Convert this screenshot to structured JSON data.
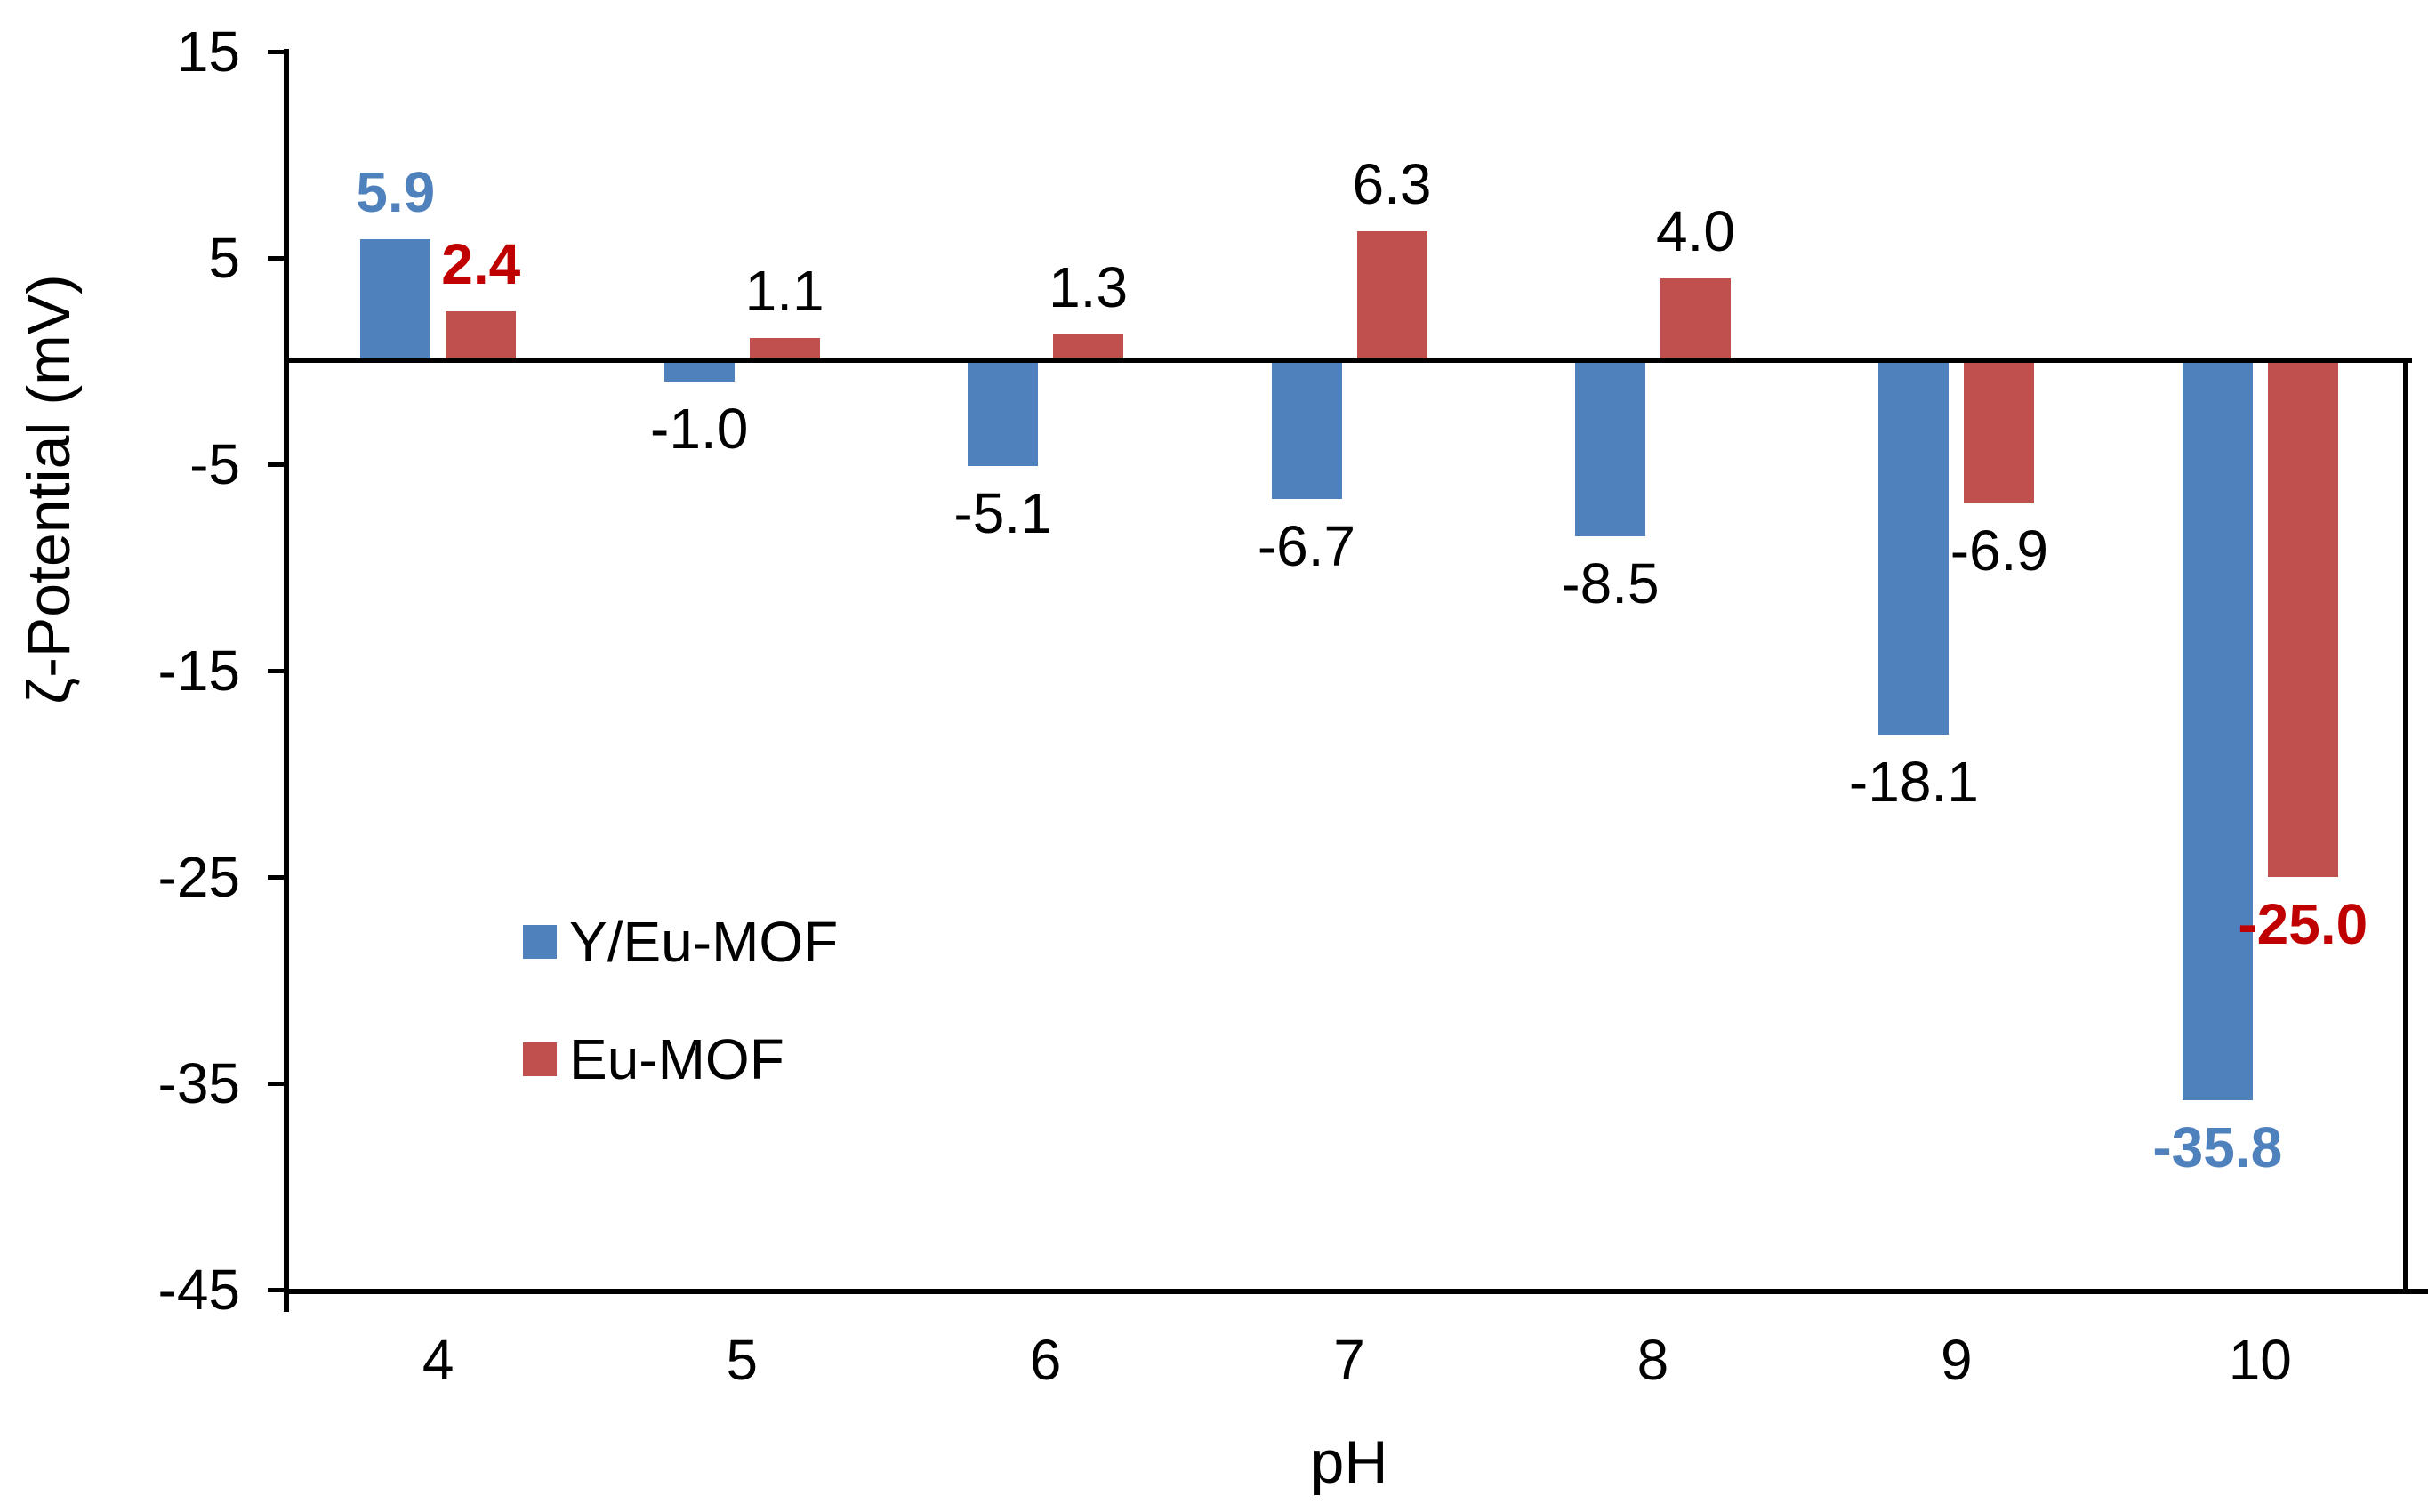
{
  "chart_data": {
    "type": "bar",
    "title": "",
    "xlabel": "pH",
    "ylabel": "ζ-Potential (mV)",
    "categories": [
      "4",
      "5",
      "6",
      "7",
      "8",
      "9",
      "10"
    ],
    "series": [
      {
        "name": "Y/Eu-MOF",
        "color": "#4F81BD",
        "values": [
          5.9,
          -1.0,
          -5.1,
          -6.7,
          -8.5,
          -18.1,
          -35.8
        ],
        "labels": [
          "5.9",
          "-1.0",
          "-5.1",
          "-6.7",
          "-8.5",
          "-18.1",
          "-35.8"
        ],
        "label_styles": [
          "bold-blue",
          "black",
          "black",
          "black",
          "black",
          "black",
          "bold-blue"
        ]
      },
      {
        "name": "Eu-MOF",
        "color": "#C0504D",
        "values": [
          2.4,
          1.1,
          1.3,
          6.3,
          4.0,
          -6.9,
          -25.0
        ],
        "labels": [
          "2.4",
          "1.1",
          "1.3",
          "6.3",
          "4.0",
          "-6.9",
          "-25.0"
        ],
        "label_styles": [
          "bold-red",
          "black",
          "black",
          "black",
          "black",
          "black",
          "bold-red"
        ]
      }
    ],
    "ylim": [
      -45,
      15
    ],
    "yticks": [
      "15",
      "5",
      "-5",
      "-15",
      "-25",
      "-35",
      "-45"
    ],
    "grid": false,
    "legend_position": "inside-left-middle",
    "colors": {
      "blue_bar": "#4F81BD",
      "red_bar": "#C0504D",
      "bold_blue_label": "#4F81BD",
      "bold_red_label": "#C00000",
      "axis": "#000000",
      "background": "#FFFFFF"
    }
  },
  "axes": {
    "x_title": "pH",
    "y_title": "ζ-Potential (mV)",
    "x_ticks": [
      "4",
      "5",
      "6",
      "7",
      "8",
      "9",
      "10"
    ],
    "y_ticks": [
      "15",
      "5",
      "-5",
      "-15",
      "-25",
      "-35",
      "-45"
    ]
  },
  "legend": {
    "items": [
      {
        "label": "Y/Eu-MOF",
        "color": "#4F81BD"
      },
      {
        "label": "Eu-MOF",
        "color": "#C0504D"
      }
    ]
  }
}
